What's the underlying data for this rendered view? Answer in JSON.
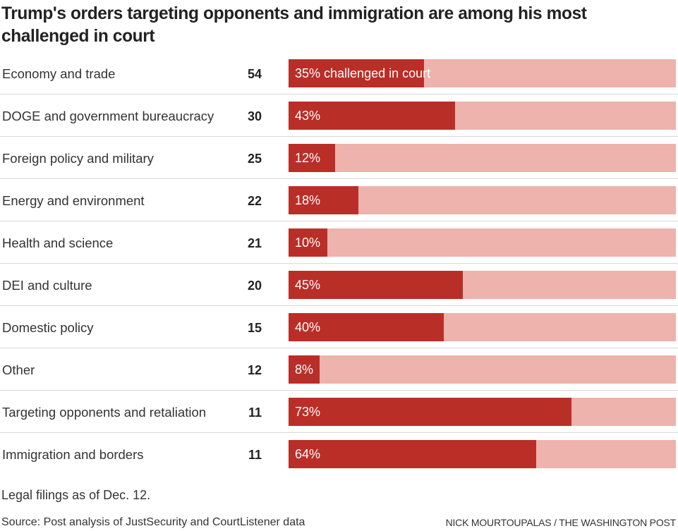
{
  "colors": {
    "challenged": "#BA2E28",
    "not_challenged": "#EDB3AC",
    "divider": "#d9d9d9"
  },
  "chart_data": {
    "type": "bar",
    "orientation": "horizontal-stacked-percent",
    "title": "Trump's orders targeting opponents and immigration are among his most challenged in court",
    "xlabel": "",
    "ylabel": "",
    "xlim": [
      0,
      100
    ],
    "grid": false,
    "legend": "none",
    "value_label_suffix": "%",
    "first_label_suffix": " challenged in court",
    "categories": [
      "Economy and trade",
      "DOGE and government bureaucracy",
      "Foreign policy and military",
      "Energy and environment",
      "Health and science",
      "DEI and culture",
      "Domestic policy",
      "Other",
      "Targeting opponents and retaliation",
      "Immigration and borders"
    ],
    "counts": [
      54,
      30,
      25,
      22,
      21,
      20,
      15,
      12,
      11,
      11
    ],
    "series": [
      {
        "name": "Challenged in court",
        "values": [
          35,
          43,
          12,
          18,
          10,
          45,
          40,
          8,
          73,
          64
        ]
      }
    ],
    "value_labels": [
      "35% challenged in court",
      "43%",
      "12%",
      "18%",
      "10%",
      "45%",
      "40%",
      "8%",
      "73%",
      "64%"
    ]
  },
  "footer": {
    "note": "Legal filings as of Dec. 12.",
    "source": "Source: Post analysis of JustSecurity and CourtListener data",
    "credit": "NICK MOURTOUPALAS / THE WASHINGTON POST"
  }
}
